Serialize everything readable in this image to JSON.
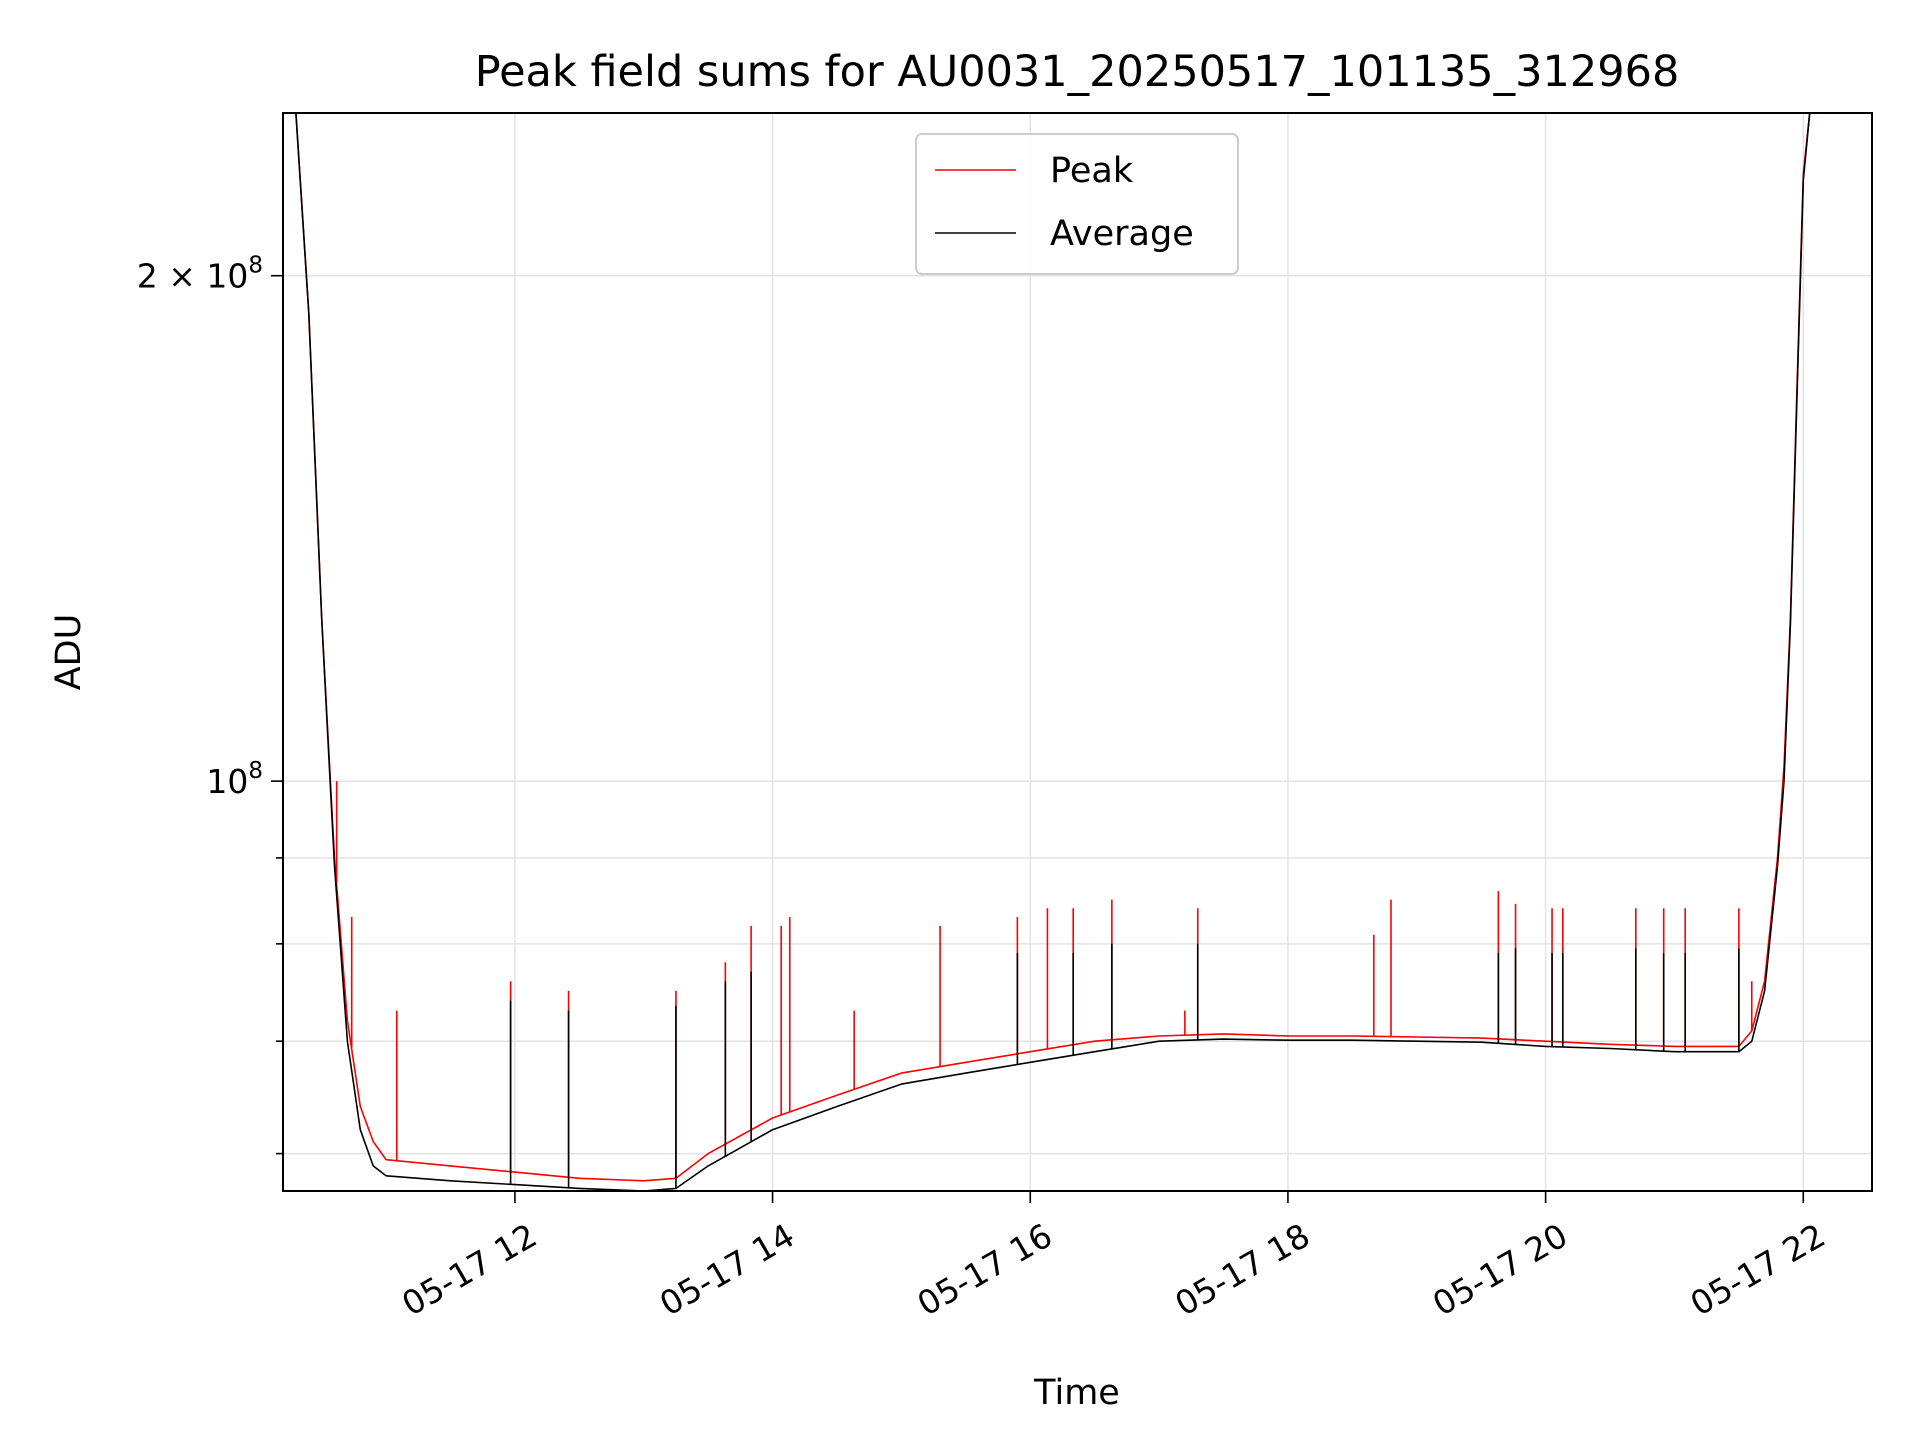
{
  "chart_data": {
    "type": "line",
    "title": "Peak field sums for AU0031_20250517_101135_312968",
    "xlabel": "Time",
    "ylabel": "ADU",
    "yscale": "log",
    "ylim": [
      57000000,
      250000000
    ],
    "xlim": [
      "05-17 10:12",
      "05-17 22:32"
    ],
    "grid": true,
    "legend_position": "upper center",
    "x_ticks": [
      {
        "value": "05-17 12:00",
        "label": "05-17 12"
      },
      {
        "value": "05-17 14:00",
        "label": "05-17 14"
      },
      {
        "value": "05-17 16:00",
        "label": "05-17 16"
      },
      {
        "value": "05-17 18:00",
        "label": "05-17 18"
      },
      {
        "value": "05-17 20:00",
        "label": "05-17 20"
      },
      {
        "value": "05-17 22:00",
        "label": "05-17 22"
      }
    ],
    "y_major_ticks": [
      {
        "value": 100000000,
        "label": "10^8",
        "base": "10",
        "exp": "8"
      },
      {
        "value": 200000000,
        "label": "2×10^8",
        "mantissa": "2 × ",
        "base": "10",
        "exp": "8"
      }
    ],
    "y_minor_ticks": [
      60000000,
      70000000,
      80000000,
      90000000
    ],
    "series": [
      {
        "name": "Peak",
        "color": "#ff0000",
        "x": [
          "05-17 10:12",
          "05-17 10:18",
          "05-17 10:24",
          "05-17 10:30",
          "05-17 10:36",
          "05-17 10:42",
          "05-17 10:48",
          "05-17 10:54",
          "05-17 11:00",
          "05-17 11:30",
          "05-17 12:00",
          "05-17 12:30",
          "05-17 13:00",
          "05-17 13:15",
          "05-17 13:30",
          "05-17 14:00",
          "05-17 14:30",
          "05-17 15:00",
          "05-17 15:30",
          "05-17 16:00",
          "05-17 16:30",
          "05-17 17:00",
          "05-17 17:30",
          "05-17 18:00",
          "05-17 18:30",
          "05-17 19:00",
          "05-17 19:30",
          "05-17 20:00",
          "05-17 20:30",
          "05-17 21:00",
          "05-17 21:30",
          "05-17 21:36",
          "05-17 21:42",
          "05-17 21:48",
          "05-17 21:51",
          "05-17 21:54",
          "05-17 21:57",
          "05-17 22:00",
          "05-17 22:03",
          "05-17 22:32"
        ],
        "y": [
          250000000,
          250000000,
          190000000,
          125000000,
          90000000,
          72000000,
          64000000,
          61000000,
          59500000,
          59000000,
          58500000,
          58000000,
          57800000,
          58000000,
          60000000,
          63000000,
          65000000,
          67000000,
          68000000,
          69000000,
          70000000,
          70500000,
          70700000,
          70500000,
          70500000,
          70400000,
          70300000,
          70000000,
          69700000,
          69500000,
          69500000,
          71000000,
          76000000,
          90000000,
          102000000,
          125000000,
          170000000,
          230000000,
          250000000,
          250000000
        ],
        "spikes": [
          {
            "x": "05-17 10:37",
            "y": 100000000
          },
          {
            "x": "05-17 10:44",
            "y": 83000000
          },
          {
            "x": "05-17 11:05",
            "y": 73000000
          },
          {
            "x": "05-17 11:58",
            "y": 76000000
          },
          {
            "x": "05-17 12:25",
            "y": 75000000
          },
          {
            "x": "05-17 13:15",
            "y": 75000000
          },
          {
            "x": "05-17 13:38",
            "y": 78000000
          },
          {
            "x": "05-17 13:50",
            "y": 82000000
          },
          {
            "x": "05-17 14:04",
            "y": 82000000
          },
          {
            "x": "05-17 14:08",
            "y": 83000000
          },
          {
            "x": "05-17 14:38",
            "y": 73000000
          },
          {
            "x": "05-17 15:18",
            "y": 82000000
          },
          {
            "x": "05-17 15:54",
            "y": 83000000
          },
          {
            "x": "05-17 16:08",
            "y": 84000000
          },
          {
            "x": "05-17 16:20",
            "y": 84000000
          },
          {
            "x": "05-17 16:38",
            "y": 85000000
          },
          {
            "x": "05-17 17:12",
            "y": 73000000
          },
          {
            "x": "05-17 17:18",
            "y": 84000000
          },
          {
            "x": "05-17 18:40",
            "y": 81000000
          },
          {
            "x": "05-17 18:48",
            "y": 85000000
          },
          {
            "x": "05-17 19:38",
            "y": 86000000
          },
          {
            "x": "05-17 19:46",
            "y": 84500000
          },
          {
            "x": "05-17 20:03",
            "y": 84000000
          },
          {
            "x": "05-17 20:08",
            "y": 84000000
          },
          {
            "x": "05-17 20:42",
            "y": 84000000
          },
          {
            "x": "05-17 20:55",
            "y": 84000000
          },
          {
            "x": "05-17 21:05",
            "y": 84000000
          },
          {
            "x": "05-17 21:30",
            "y": 84000000
          },
          {
            "x": "05-17 21:36",
            "y": 76000000
          }
        ]
      },
      {
        "name": "Average",
        "color": "#000000",
        "x": [
          "05-17 10:12",
          "05-17 10:18",
          "05-17 10:24",
          "05-17 10:30",
          "05-17 10:36",
          "05-17 10:42",
          "05-17 10:48",
          "05-17 10:54",
          "05-17 11:00",
          "05-17 11:30",
          "05-17 12:00",
          "05-17 12:30",
          "05-17 13:00",
          "05-17 13:15",
          "05-17 13:30",
          "05-17 14:00",
          "05-17 14:30",
          "05-17 15:00",
          "05-17 15:30",
          "05-17 16:00",
          "05-17 16:30",
          "05-17 17:00",
          "05-17 17:30",
          "05-17 18:00",
          "05-17 18:30",
          "05-17 19:00",
          "05-17 19:30",
          "05-17 20:00",
          "05-17 20:30",
          "05-17 21:00",
          "05-17 21:30",
          "05-17 21:36",
          "05-17 21:42",
          "05-17 21:48",
          "05-17 21:51",
          "05-17 21:54",
          "05-17 21:57",
          "05-17 22:00",
          "05-17 22:03",
          "05-17 22:32"
        ],
        "y": [
          250000000,
          250000000,
          190000000,
          125000000,
          89000000,
          70000000,
          62000000,
          59000000,
          58200000,
          57800000,
          57500000,
          57200000,
          57000000,
          57200000,
          59000000,
          62000000,
          64000000,
          66000000,
          67000000,
          68000000,
          69000000,
          70000000,
          70200000,
          70100000,
          70100000,
          70000000,
          69900000,
          69500000,
          69300000,
          69000000,
          69000000,
          70000000,
          75000000,
          89000000,
          100000000,
          124000000,
          168000000,
          228000000,
          250000000,
          250000000
        ],
        "spikes": [
          {
            "x": "05-17 11:58",
            "y": 74000000
          },
          {
            "x": "05-17 12:25",
            "y": 73000000
          },
          {
            "x": "05-17 13:15",
            "y": 73500000
          },
          {
            "x": "05-17 13:38",
            "y": 76000000
          },
          {
            "x": "05-17 13:50",
            "y": 77000000
          },
          {
            "x": "05-17 15:54",
            "y": 79000000
          },
          {
            "x": "05-17 16:20",
            "y": 79000000
          },
          {
            "x": "05-17 16:38",
            "y": 80000000
          },
          {
            "x": "05-17 17:18",
            "y": 80000000
          },
          {
            "x": "05-17 19:38",
            "y": 79000000
          },
          {
            "x": "05-17 19:46",
            "y": 79500000
          },
          {
            "x": "05-17 20:03",
            "y": 79000000
          },
          {
            "x": "05-17 20:08",
            "y": 79000000
          },
          {
            "x": "05-17 20:42",
            "y": 79500000
          },
          {
            "x": "05-17 20:55",
            "y": 79000000
          },
          {
            "x": "05-17 21:05",
            "y": 79000000
          },
          {
            "x": "05-17 21:30",
            "y": 79500000
          }
        ]
      }
    ]
  }
}
